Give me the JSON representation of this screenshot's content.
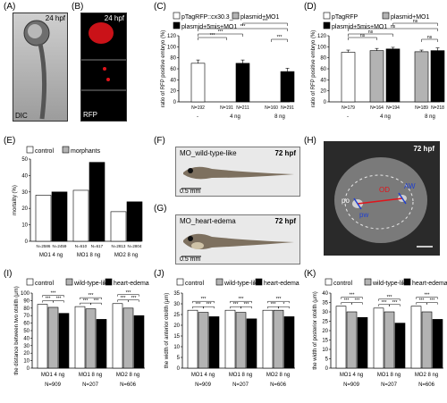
{
  "panels": {
    "A": {
      "label": "(A)",
      "hpf": "24 hpf",
      "caption": "DIC"
    },
    "B": {
      "label": "(B)",
      "hpf": "24 hpf",
      "caption": "RFP"
    },
    "C": {
      "label": "(C)"
    },
    "D": {
      "label": "(D)"
    },
    "E": {
      "label": "(E)"
    },
    "F": {
      "label": "(F)",
      "title": "MO_wild-type-like",
      "hpf": "72 hpf",
      "scale": "0.5 mm"
    },
    "G": {
      "label": "(G)",
      "title": "MO_heart-edema",
      "hpf": "72 hpf",
      "scale": "0.5 mm"
    },
    "H": {
      "label": "(H)",
      "hpf": "72 hpf",
      "marks": [
        "OD",
        "AW",
        "po",
        "pw"
      ]
    },
    "I": {
      "label": "(I)"
    },
    "J": {
      "label": "(J)"
    },
    "K": {
      "label": "(K)"
    }
  },
  "chart_data": [
    {
      "id": "C",
      "type": "bar",
      "legend": [
        "pTagRFP::cx30.3_wt",
        "plasmid+MO1",
        "plasmid+5mis+MO1"
      ],
      "ylabel": "ratio of RFP positive embryo (%)",
      "ylim": [
        0,
        120
      ],
      "yticks": [
        "0",
        "20",
        "40",
        "60",
        "80",
        "100",
        "120"
      ],
      "groups": [
        "-",
        "4 ng",
        "8 ng"
      ],
      "bars": [
        {
          "n": "N=192",
          "value": 70,
          "err": 6,
          "series": 0
        },
        {
          "n": "N=191",
          "value": 0,
          "err": 0,
          "series": 1
        },
        {
          "n": "N=211",
          "value": 70,
          "err": 6,
          "series": 2
        },
        {
          "n": "N=160",
          "value": 0,
          "err": 0,
          "series": 1
        },
        {
          "n": "N=291",
          "value": 55,
          "err": 6,
          "series": 2
        }
      ],
      "sig": [
        "***",
        "***",
        "***",
        "***",
        "***"
      ]
    },
    {
      "id": "D",
      "type": "bar",
      "legend": [
        "pTagRFP",
        "plasmid+MO1",
        "plasmid+5mis+MO1"
      ],
      "ylabel": "ratio of RFP positive embryo (%)",
      "ylim": [
        0,
        120
      ],
      "yticks": [
        "0",
        "20",
        "40",
        "60",
        "80",
        "100",
        "120"
      ],
      "groups": [
        "-",
        "4 ng",
        "8 ng"
      ],
      "bars": [
        {
          "n": "N=179",
          "value": 90,
          "err": 4,
          "series": 0
        },
        {
          "n": "N=164",
          "value": 93,
          "err": 4,
          "series": 1
        },
        {
          "n": "N=194",
          "value": 96,
          "err": 3,
          "series": 2
        },
        {
          "n": "N=189",
          "value": 91,
          "err": 3,
          "series": 1
        },
        {
          "n": "N=218",
          "value": 93,
          "err": 5,
          "series": 2
        }
      ],
      "sig": [
        "ns",
        "ns",
        "ns",
        "ns",
        "ns"
      ]
    },
    {
      "id": "E",
      "type": "bar",
      "legend": [
        "control",
        "morphants"
      ],
      "ylabel": "mortality (%)",
      "ylim": [
        0,
        50
      ],
      "yticks": [
        "0",
        "10",
        "20",
        "30",
        "40",
        "50"
      ],
      "groups": [
        "MO1 4 ng",
        "MO1 8 ng",
        "MO2 8 ng"
      ],
      "bars": [
        {
          "n": "N=2586",
          "value": 28,
          "series": 0
        },
        {
          "n": "N=2459",
          "value": 30,
          "series": 1
        },
        {
          "n": "N=610",
          "value": 31,
          "series": 0
        },
        {
          "n": "N=617",
          "value": 48,
          "series": 1
        },
        {
          "n": "N=2813",
          "value": 18,
          "series": 0
        },
        {
          "n": "N=2804",
          "value": 24,
          "series": 1
        }
      ]
    },
    {
      "id": "I",
      "type": "bar",
      "legend": [
        "control",
        "wild-type-like",
        "heart-edema"
      ],
      "ylabel": "the distance between two otolith (μm)",
      "ylim": [
        0,
        100
      ],
      "yticks": [
        "0",
        "10",
        "20",
        "30",
        "40",
        "50",
        "60",
        "70",
        "80",
        "90",
        "100"
      ],
      "groups": [
        "MO1 4 ng",
        "MO1 8 ng",
        "MO2 8 ng"
      ],
      "ns_labels": [
        "N=909",
        "N=207",
        "N=606"
      ],
      "values": [
        [
          85,
          81,
          73
        ],
        [
          82,
          79,
          65
        ],
        [
          86,
          80,
          70
        ]
      ],
      "sig": [
        [
          "***",
          "***",
          "***"
        ],
        [
          "***",
          "***",
          "***"
        ],
        [
          "***",
          "***",
          "***"
        ]
      ]
    },
    {
      "id": "J",
      "type": "bar",
      "legend": [
        "control",
        "wild-type-like",
        "heart-edema"
      ],
      "ylabel": "the width of anterior otolith (μm)",
      "ylim": [
        0,
        35
      ],
      "yticks": [
        "0",
        "5",
        "10",
        "15",
        "20",
        "25",
        "30",
        "35"
      ],
      "groups": [
        "MO1 4 ng",
        "MO1 8 ng",
        "MO2 8 ng"
      ],
      "ns_labels": [
        "N=909",
        "N=207",
        "N=606"
      ],
      "values": [
        [
          27,
          26,
          24
        ],
        [
          27,
          26,
          23
        ],
        [
          27,
          27,
          24
        ]
      ],
      "sig": [
        [
          "***",
          "***",
          "***"
        ],
        [
          "***",
          "***",
          "***"
        ],
        [
          "***",
          "*",
          "***"
        ]
      ]
    },
    {
      "id": "K",
      "type": "bar",
      "legend": [
        "control",
        "wild-type-like",
        "heart-edema"
      ],
      "ylabel": "the width of posterior otolith (μm)",
      "ylim": [
        0,
        40
      ],
      "yticks": [
        "0",
        "5",
        "10",
        "15",
        "20",
        "25",
        "30",
        "35",
        "40"
      ],
      "groups": [
        "MO1 4 ng",
        "MO1 8 ng",
        "MO2 8 ng"
      ],
      "ns_labels": [
        "N=909",
        "N=207",
        "N=606"
      ],
      "values": [
        [
          33,
          30,
          27
        ],
        [
          32,
          30,
          24
        ],
        [
          33,
          30,
          26
        ]
      ],
      "sig": [
        [
          "***",
          "***",
          "***"
        ],
        [
          "***",
          "***",
          "***"
        ],
        [
          "***",
          "***",
          "***"
        ]
      ]
    }
  ],
  "colors": {
    "white": "#ffffff",
    "gray": "#b3b3b3",
    "black": "#000000",
    "rfp": "#e0141b"
  }
}
